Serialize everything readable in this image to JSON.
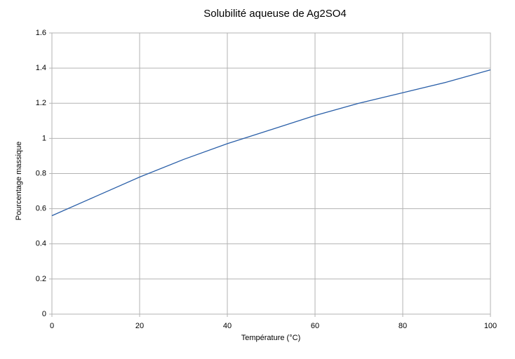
{
  "chart_data": {
    "type": "line",
    "title": "Solubilité aqueuse de Ag2SO4",
    "x_label": "Température  (°C)",
    "y_label": "Pourcentage massique",
    "x": [
      0,
      10,
      20,
      30,
      40,
      50,
      60,
      70,
      80,
      90,
      100
    ],
    "series": [
      {
        "name": "Ag2SO4",
        "color": "#2a5fa8",
        "values": [
          0.56,
          0.67,
          0.78,
          0.88,
          0.97,
          1.05,
          1.13,
          1.2,
          1.26,
          1.32,
          1.39
        ]
      }
    ],
    "xlim": [
      0,
      100
    ],
    "xticks": [
      0,
      20,
      40,
      60,
      80,
      100
    ],
    "ylim": [
      0,
      1.6
    ],
    "yticks": [
      0,
      0.2,
      0.4,
      0.6,
      0.8,
      1,
      1.2,
      1.4,
      1.6
    ],
    "grid": true,
    "legend": false
  }
}
